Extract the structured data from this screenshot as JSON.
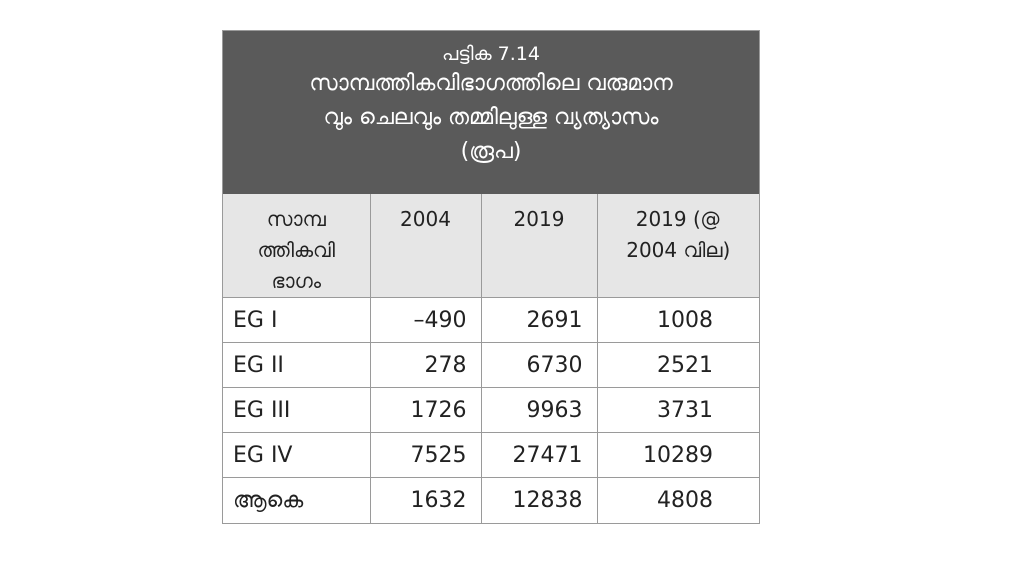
{
  "table": {
    "number": "പട്ടിക 7.14",
    "title_lines": [
      "സാമ്പത്തികവിഭാഗത്തിലെ വരുമാന",
      "വും ചെലവും തമ്മിലുള്ള വ്യത്യാസം",
      "(രൂപ)"
    ],
    "header": {
      "col1_lines": [
        "സാമ്പ",
        "ത്തികവി",
        "ഭാഗം"
      ],
      "col2": "2004",
      "col3": "2019",
      "col4_lines": [
        "2019 (@",
        "2004 വില)"
      ]
    },
    "rows": [
      {
        "group": "EG  I",
        "v2004": "–490",
        "v2019": "2691",
        "v2019_at_2004": "1008"
      },
      {
        "group": "EG II",
        "v2004": "278",
        "v2019": "6730",
        "v2019_at_2004": "2521"
      },
      {
        "group": "EG III",
        "v2004": "1726",
        "v2019": "9963",
        "v2019_at_2004": "3731"
      },
      {
        "group": "EG IV",
        "v2004": "7525",
        "v2019": "27471",
        "v2019_at_2004": "10289"
      },
      {
        "group": "ആകെ",
        "v2004": "1632",
        "v2019": "12838",
        "v2019_at_2004": "4808"
      }
    ]
  },
  "colors": {
    "caption_bg": "#5a5a5a",
    "header_bg": "#e6e6e6",
    "border": "#9a9a9a"
  }
}
